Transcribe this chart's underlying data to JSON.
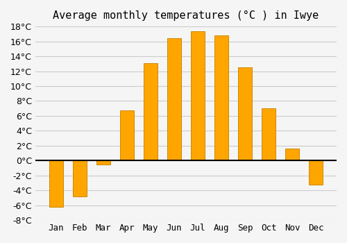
{
  "title": "Average monthly temperatures (°C ) in Iwye",
  "months": [
    "Jan",
    "Feb",
    "Mar",
    "Apr",
    "May",
    "Jun",
    "Jul",
    "Aug",
    "Sep",
    "Oct",
    "Nov",
    "Dec"
  ],
  "values": [
    -6.2,
    -4.8,
    -0.5,
    6.7,
    13.1,
    16.4,
    17.4,
    16.8,
    12.5,
    7.0,
    1.6,
    -3.2
  ],
  "bar_color": "#FFA500",
  "bar_edge_color": "#CC8800",
  "ylim": [
    -8,
    18
  ],
  "yticks": [
    -8,
    -6,
    -4,
    -2,
    0,
    2,
    4,
    6,
    8,
    10,
    12,
    14,
    16,
    18
  ],
  "background_color": "#f5f5f5",
  "grid_color": "#cccccc",
  "zero_line_color": "#000000",
  "title_fontsize": 11,
  "tick_fontsize": 9
}
